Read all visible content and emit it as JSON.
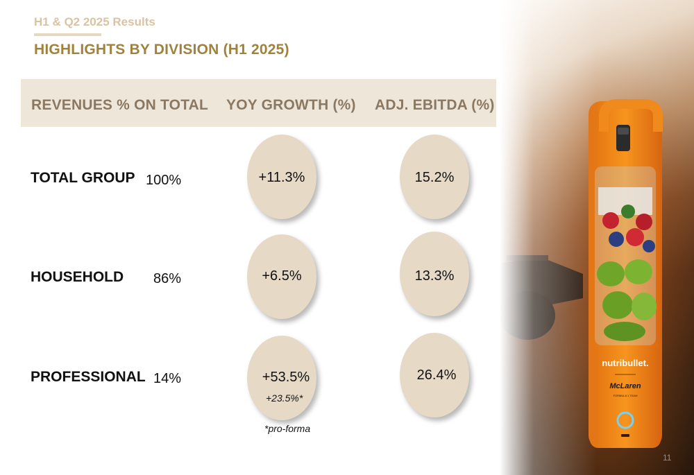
{
  "header": {
    "subtitle": "H1 & Q2 2025 Results",
    "title": "HIGHLIGHTS BY DIVISION (H1 2025)"
  },
  "columns": {
    "revenues": "REVENUES % ON TOTAL",
    "growth": "YOY GROWTH (%)",
    "ebitda": "ADJ. EBITDA (%)"
  },
  "rows": [
    {
      "label": "TOTAL GROUP",
      "revenue_pct": "100%",
      "growth": "+11.3%",
      "ebitda": "15.2%"
    },
    {
      "label": "HOUSEHOLD",
      "revenue_pct": "86%",
      "growth": "+6.5%",
      "ebitda": "13.3%"
    },
    {
      "label": "PROFESSIONAL",
      "revenue_pct": "14%",
      "growth": "+53.5%",
      "growth_proforma": "+23.5%*",
      "ebitda": "26.4%"
    }
  ],
  "footnote": "*pro-forma",
  "product": {
    "brand": "nutribullet.",
    "partner": "McLaren",
    "partner_sub": "FORMULA 1 TEAM"
  },
  "page_number": "11",
  "colors": {
    "title": "#a0823c",
    "subtitle": "#d8c4a2",
    "header_band": "#eee7d9",
    "bubble": "#e6dac7",
    "product_orange": "#f08a1c"
  }
}
